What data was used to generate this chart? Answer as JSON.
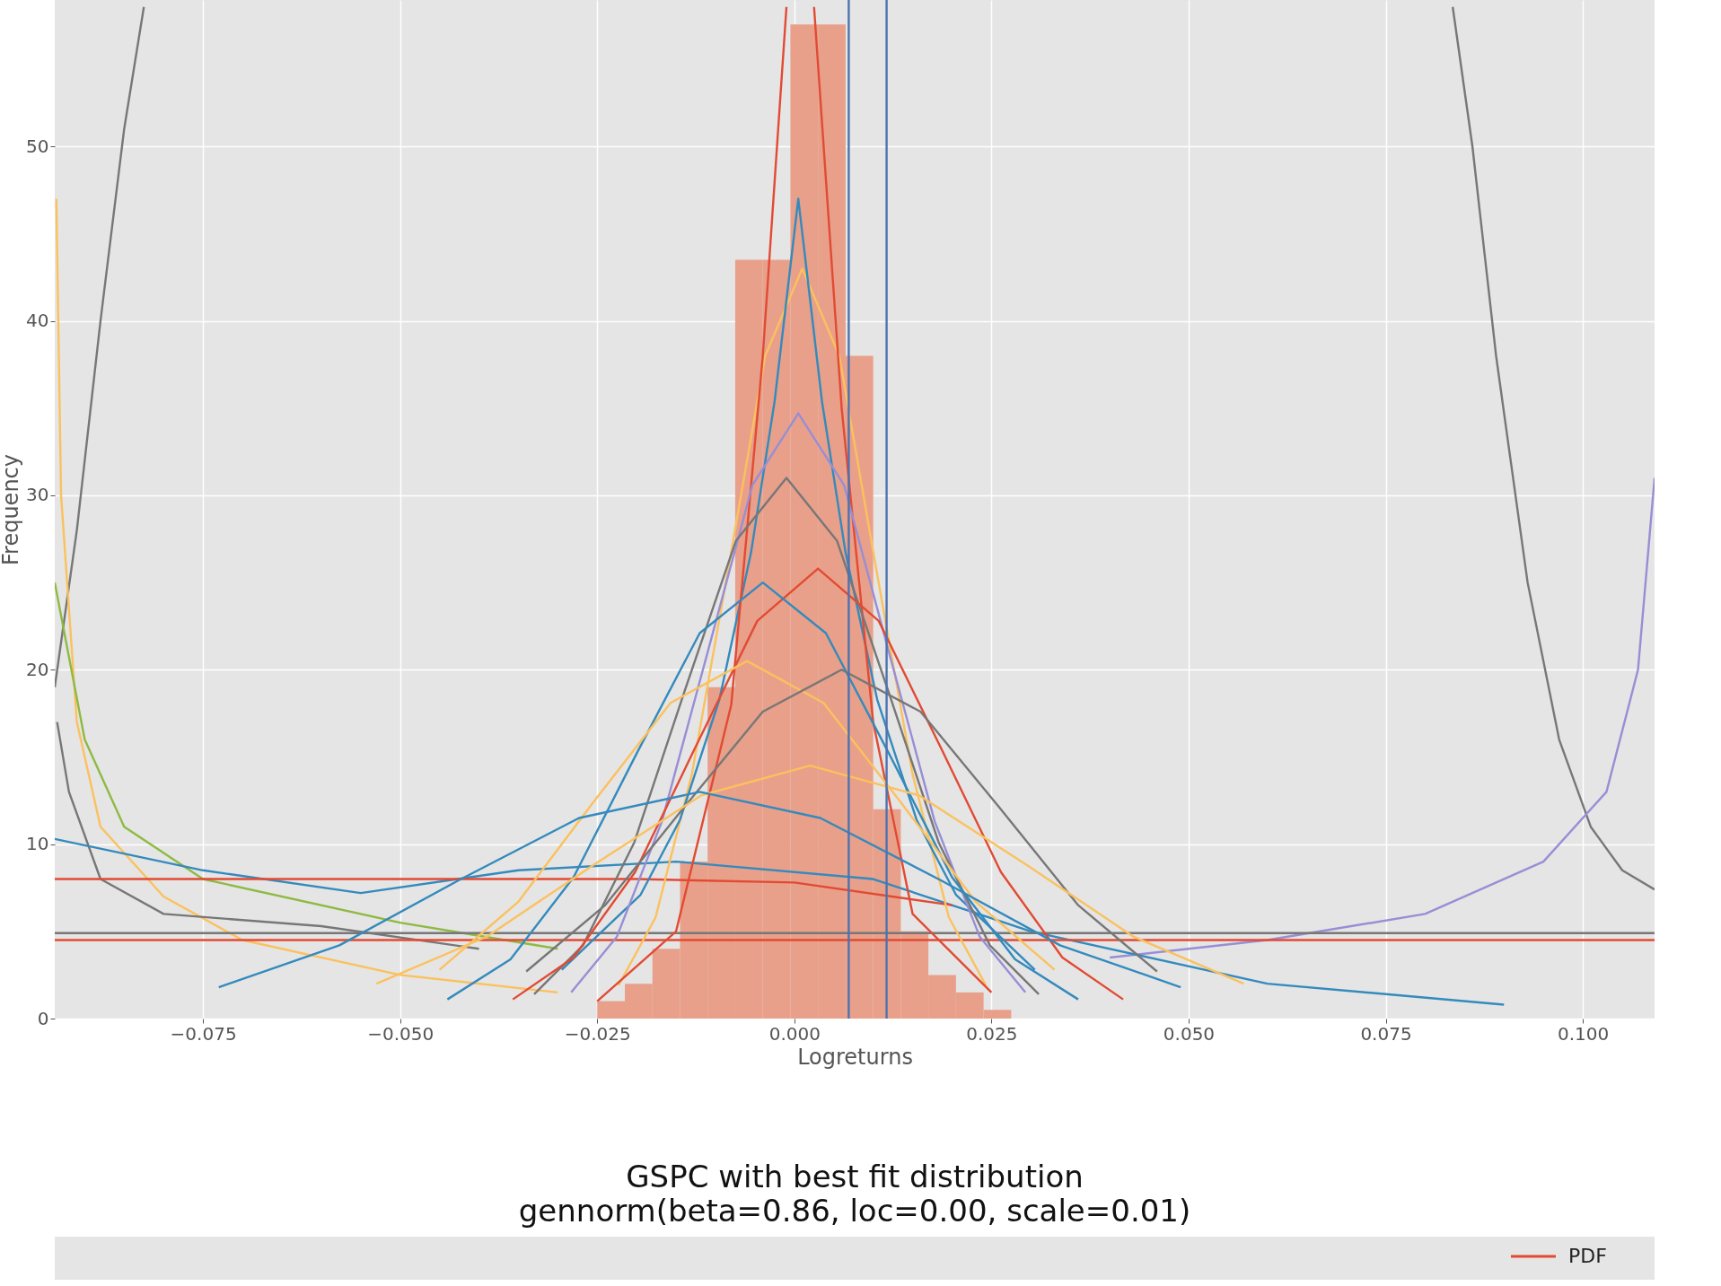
{
  "chart_data": [
    {
      "type": "histogram",
      "xlabel": "Logreturns",
      "ylabel": "Frequency",
      "bins": [
        -0.025,
        -0.0215,
        -0.018,
        -0.0145,
        -0.011,
        -0.0075,
        -0.004,
        -0.0005,
        0.003,
        0.0065,
        0.01,
        0.0135,
        0.017,
        0.0205,
        0.024,
        0.0275
      ],
      "values": [
        1,
        2,
        4,
        9,
        19,
        43.5,
        43.5,
        57,
        57,
        38,
        12,
        5,
        2.5,
        1.5,
        0.5
      ],
      "color": "#e8a08a",
      "xlim": [
        -0.0938,
        0.1091
      ],
      "ylim": [
        0,
        58.4
      ],
      "xticks": [
        {
          "value": -0.075,
          "label": "−0.075"
        },
        {
          "value": -0.05,
          "label": "−0.050"
        },
        {
          "value": -0.025,
          "label": "−0.025"
        },
        {
          "value": 0,
          "label": "0.000"
        },
        {
          "value": 0.025,
          "label": "0.025"
        },
        {
          "value": 0.05,
          "label": "0.050"
        },
        {
          "value": 0.075,
          "label": "0.075"
        },
        {
          "value": 0.1,
          "label": "0.100"
        }
      ],
      "yticks": [
        0,
        10,
        20,
        30,
        40,
        50
      ],
      "grid": true,
      "series": [
        {
          "type": "line",
          "color": "#777777",
          "x": [
            -0.0938,
            -0.091,
            -0.088,
            -0.085,
            -0.0825
          ],
          "values": [
            19,
            28,
            40,
            51,
            58
          ]
        },
        {
          "type": "line",
          "color": "#777777",
          "x": [
            0.0835,
            0.086,
            0.089,
            0.093,
            0.097,
            0.101,
            0.105,
            0.1091
          ],
          "values": [
            58,
            50,
            38,
            25,
            16,
            11,
            8.5,
            7.4
          ]
        },
        {
          "type": "line",
          "color": "#988ED5",
          "x": [
            0.04,
            0.06,
            0.08,
            0.095,
            0.103,
            0.107,
            0.1091
          ],
          "values": [
            3.5,
            4.5,
            6,
            9,
            13,
            20,
            31
          ]
        },
        {
          "type": "line",
          "color": "#FBC15E",
          "x": [
            -0.0936,
            -0.093,
            -0.091,
            -0.088,
            -0.08,
            -0.07,
            -0.05,
            -0.03
          ],
          "values": [
            47,
            30,
            17,
            11,
            7,
            4.5,
            2.5,
            1.5
          ]
        },
        {
          "type": "line",
          "color": "#8EBA42",
          "x": [
            -0.0938,
            -0.09,
            -0.085,
            -0.075,
            -0.05,
            -0.03
          ],
          "values": [
            25,
            16,
            11,
            8,
            5.5,
            4
          ]
        },
        {
          "type": "line",
          "color": "#777777",
          "x": [
            -0.0935,
            -0.092,
            -0.088,
            -0.08,
            -0.06,
            -0.04
          ],
          "values": [
            17,
            13,
            8,
            6,
            5.3,
            4
          ]
        },
        {
          "type": "line",
          "color": "#348ABD",
          "x": [
            -0.0938,
            -0.075,
            -0.055,
            -0.035,
            -0.015,
            0.01,
            0.03,
            0.06,
            0.09
          ],
          "values": [
            10.3,
            8.5,
            7.2,
            8.5,
            9,
            8,
            5,
            2,
            0.8
          ]
        },
        {
          "type": "line",
          "color": "#E24A33",
          "x": [
            -0.0938,
            -0.05,
            -0.02,
            0.0,
            0.02
          ],
          "values": [
            8,
            8,
            8,
            7.8,
            6.5
          ]
        },
        {
          "type": "line",
          "color": "#777777",
          "x": [
            -0.0938,
            0.1091
          ],
          "values": [
            4.9,
            4.9
          ]
        },
        {
          "type": "line",
          "color": "#E24A33",
          "x": [
            -0.0938,
            0.1091
          ],
          "values": [
            4.5,
            4.5
          ]
        },
        {
          "type": "line",
          "color": "#FBC15E",
          "x": [
            -0.0223,
            -0.0176,
            -0.013,
            -0.0083,
            -0.0037,
            0.001,
            0.0057,
            0.0103,
            0.015,
            0.0196,
            0.0243
          ],
          "values": [
            1.9,
            5.8,
            14,
            26,
            38,
            43,
            38,
            26,
            14,
            5.8,
            1.9
          ]
        },
        {
          "type": "line",
          "color": "#348ABD",
          "x": [
            -0.0295,
            -0.0195,
            -0.0145,
            -0.0095,
            -0.0055,
            -0.0025,
            0.0005,
            0.0035,
            0.0065,
            0.0105,
            0.0155,
            0.0205,
            0.0305
          ],
          "values": [
            2.8,
            7.1,
            11.4,
            18.3,
            26.7,
            35.4,
            47,
            35.4,
            26.7,
            18.3,
            11.4,
            7.1,
            2.8
          ]
        },
        {
          "type": "line",
          "color": "#E24A33",
          "x": [
            -0.025,
            -0.015,
            -0.008,
            -0.004,
            -0.001
          ],
          "values": [
            1,
            5,
            18,
            38,
            58
          ]
        },
        {
          "type": "line",
          "color": "#E24A33",
          "x": [
            0.0025,
            0.006,
            0.01,
            0.015,
            0.025
          ],
          "values": [
            58,
            35,
            17,
            6,
            1.5
          ]
        },
        {
          "type": "line",
          "color": "#988ED5",
          "x": [
            -0.0283,
            -0.0225,
            -0.0168,
            -0.011,
            -0.0053,
            0.0005,
            0.0063,
            0.012,
            0.0178,
            0.0235,
            0.0293
          ],
          "values": [
            1.5,
            4.7,
            11.3,
            21,
            30.6,
            34.7,
            30.6,
            21,
            11.3,
            4.7,
            1.5
          ]
        },
        {
          "type": "line",
          "color": "#777777",
          "x": [
            -0.033,
            -0.0268,
            -0.0203,
            -0.0139,
            -0.0074,
            -0.001,
            0.0054,
            0.0119,
            0.0183,
            0.0248,
            0.031
          ],
          "values": [
            1.4,
            4.2,
            10.1,
            18.8,
            27.4,
            31,
            27.4,
            18.8,
            10.1,
            4.2,
            1.4
          ]
        },
        {
          "type": "line",
          "color": "#E24A33",
          "x": [
            -0.0357,
            -0.028,
            -0.0202,
            -0.0125,
            -0.0047,
            0.003,
            0.0107,
            0.0185,
            0.0262,
            0.034,
            0.0417
          ],
          "values": [
            1.1,
            3.5,
            8.4,
            15.6,
            22.8,
            25.8,
            22.8,
            15.6,
            8.4,
            3.5,
            1.1
          ]
        },
        {
          "type": "line",
          "color": "#348ABD",
          "x": [
            -0.044,
            -0.036,
            -0.028,
            -0.02,
            -0.012,
            -0.004,
            0.004,
            0.012,
            0.02,
            0.028,
            0.036
          ],
          "values": [
            1.1,
            3.4,
            8.1,
            15.2,
            22.1,
            25,
            22.1,
            15.2,
            8.1,
            3.4,
            1.1
          ]
        },
        {
          "type": "line",
          "color": "#FBC15E",
          "x": [
            -0.045,
            -0.035,
            -0.0255,
            -0.0157,
            -0.006,
            0.0037,
            0.0135,
            0.023,
            0.033
          ],
          "values": [
            2.8,
            6.7,
            12.4,
            18.1,
            20.5,
            18.1,
            12.4,
            6.7,
            2.8
          ]
        },
        {
          "type": "line",
          "color": "#777777",
          "x": [
            -0.034,
            -0.024,
            -0.014,
            -0.004,
            0.006,
            0.016,
            0.026,
            0.036,
            0.046
          ],
          "values": [
            2.7,
            6.5,
            12.1,
            17.6,
            20,
            17.6,
            12.1,
            6.5,
            2.7
          ]
        },
        {
          "type": "line",
          "color": "#FBC15E",
          "x": [
            -0.053,
            -0.039,
            -0.0255,
            -0.0118,
            0.002,
            0.0158,
            0.0295,
            0.043,
            0.057
          ],
          "values": [
            2,
            4.7,
            8.8,
            12.8,
            14.5,
            12.8,
            8.8,
            4.7,
            2
          ]
        },
        {
          "type": "line",
          "color": "#348ABD",
          "x": [
            -0.073,
            -0.0577,
            -0.0427,
            -0.0273,
            -0.012,
            0.0033,
            0.0187,
            0.0337,
            0.049
          ],
          "values": [
            1.8,
            4.2,
            7.9,
            11.5,
            13,
            11.5,
            7.9,
            4.2,
            1.8
          ]
        },
        {
          "type": "line",
          "color": "#4C72B0",
          "x": [
            0.0069,
            0.0069
          ],
          "values": [
            0,
            58.4
          ]
        },
        {
          "type": "line",
          "color": "#4C72B0",
          "x": [
            0.0117,
            0.0117
          ],
          "values": [
            0,
            58.4
          ]
        }
      ]
    },
    {
      "type": "other",
      "title": "GSPC with best fit distribution",
      "subtitle": "gennorm(beta=0.86, loc=0.00, scale=0.01)",
      "legend": "top right",
      "series": [
        {
          "name": "PDF",
          "color": "#E24A33"
        }
      ]
    }
  ]
}
